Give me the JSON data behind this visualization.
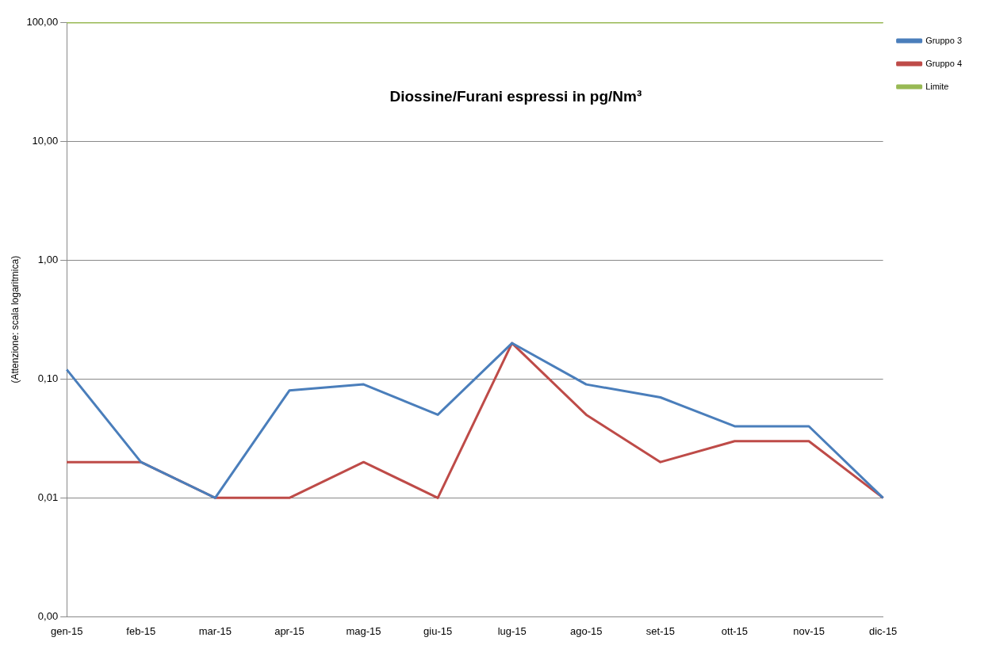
{
  "chart_data": {
    "type": "line",
    "title": "Diossine/Furani espressi in pg/Nm³",
    "ylabel": "(Attenzione: scala logaritmica)",
    "categories": [
      "gen-15",
      "feb-15",
      "mar-15",
      "apr-15",
      "mag-15",
      "giu-15",
      "lug-15",
      "ago-15",
      "set-15",
      "ott-15",
      "nov-15",
      "dic-15"
    ],
    "series": [
      {
        "name": "Gruppo 3",
        "color": "#4a7ebb",
        "values": [
          0.12,
          0.02,
          0.01,
          0.08,
          0.09,
          0.05,
          0.2,
          0.09,
          0.07,
          0.04,
          0.04,
          0.01
        ]
      },
      {
        "name": "Gruppo 4",
        "color": "#be4b48",
        "values": [
          0.02,
          0.02,
          0.01,
          0.01,
          0.02,
          0.01,
          0.2,
          0.05,
          0.02,
          0.03,
          0.03,
          0.01
        ]
      },
      {
        "name": "Limite",
        "color": "#98b954",
        "values": [
          100,
          100,
          100,
          100,
          100,
          100,
          100,
          100,
          100,
          100,
          100,
          100
        ]
      }
    ],
    "log": "y",
    "ylim": [
      0.001,
      100
    ],
    "yticks": [
      {
        "value": 0.001,
        "label": "0,00"
      },
      {
        "value": 0.01,
        "label": "0,01"
      },
      {
        "value": 0.1,
        "label": "0,10"
      },
      {
        "value": 1,
        "label": "1,00"
      },
      {
        "value": 10,
        "label": "10,00"
      },
      {
        "value": 100,
        "label": "100,00"
      }
    ],
    "grid": "y",
    "legend": "top right",
    "marker": "none",
    "line_style": "solid"
  }
}
